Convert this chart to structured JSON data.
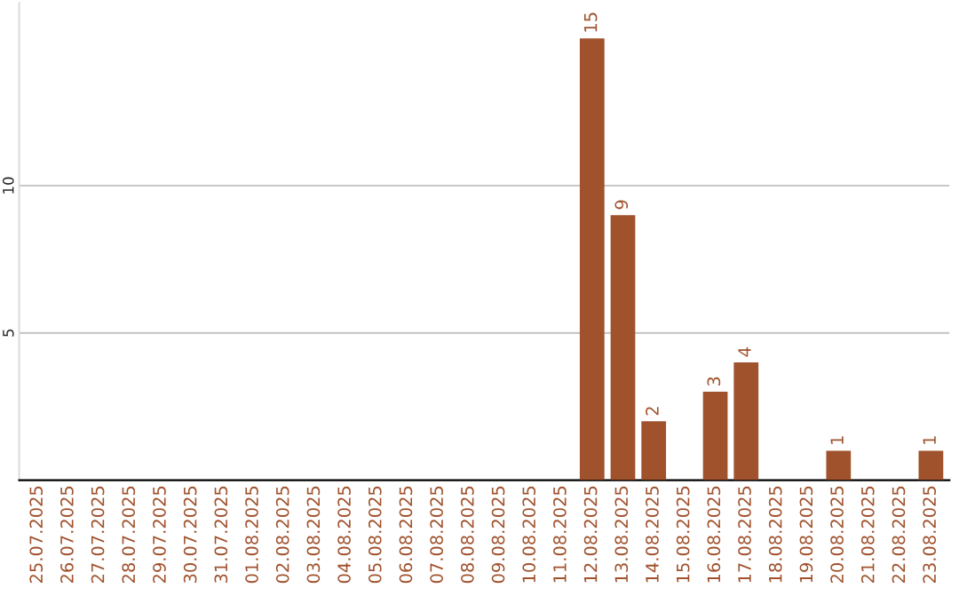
{
  "chart_data": {
    "type": "bar",
    "categories": [
      "25.07.2025",
      "26.07.2025",
      "27.07.2025",
      "28.07.2025",
      "29.07.2025",
      "30.07.2025",
      "31.07.2025",
      "01.08.2025",
      "02.08.2025",
      "03.08.2025",
      "04.08.2025",
      "05.08.2025",
      "06.08.2025",
      "07.08.2025",
      "08.08.2025",
      "09.08.2025",
      "10.08.2025",
      "11.08.2025",
      "12.08.2025",
      "13.08.2025",
      "14.08.2025",
      "15.08.2025",
      "16.08.2025",
      "17.08.2025",
      "18.08.2025",
      "19.08.2025",
      "20.08.2025",
      "21.08.2025",
      "22.08.2025",
      "23.08.2025"
    ],
    "values": [
      0,
      0,
      0,
      0,
      0,
      0,
      0,
      0,
      0,
      0,
      0,
      0,
      0,
      0,
      0,
      0,
      0,
      0,
      15,
      9,
      2,
      0,
      3,
      4,
      0,
      0,
      1,
      0,
      0,
      1
    ],
    "value_labels": [
      null,
      null,
      null,
      null,
      null,
      null,
      null,
      null,
      null,
      null,
      null,
      null,
      null,
      null,
      null,
      null,
      null,
      null,
      "15",
      "9",
      "2",
      null,
      "3",
      "4",
      null,
      null,
      "1",
      null,
      null,
      "1"
    ],
    "color": "#a0522d",
    "ylim": [
      0,
      16.2
    ],
    "yticks": [
      5,
      10
    ],
    "grid": "y"
  }
}
